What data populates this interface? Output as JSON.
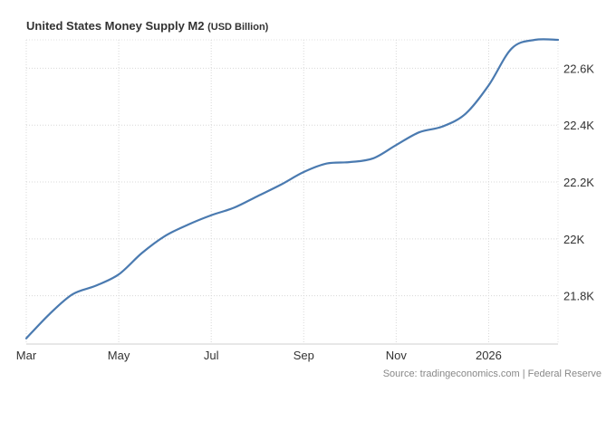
{
  "chart_data": {
    "type": "line",
    "title": "United States Money Supply M2",
    "unit_label": "(USD Billion)",
    "source": "Source: tradingeconomics.com | Federal Reserve",
    "x_tick_labels": [
      "Mar",
      "May",
      "Jul",
      "Sep",
      "Nov",
      "2026"
    ],
    "y_tick_labels": [
      "22.6K",
      "22.4K",
      "22.2K",
      "22K",
      "21.8K"
    ],
    "y_ticks": [
      22600,
      22400,
      22200,
      22000,
      21800
    ],
    "ylim": [
      21630,
      22700
    ],
    "x_range": [
      0,
      11.5
    ],
    "grid": true,
    "series": [
      {
        "name": "Money Supply M2",
        "color": "#4a7ab0",
        "x": [
          0,
          0.5,
          1,
          1.5,
          2,
          2.5,
          3,
          3.5,
          4,
          4.5,
          5,
          5.5,
          6,
          6.5,
          7,
          7.5,
          8,
          8.5,
          9,
          9.5,
          10,
          10.5,
          11,
          11.5
        ],
        "values": [
          21650,
          21735,
          21805,
          21835,
          21875,
          21950,
          22010,
          22050,
          22083,
          22110,
          22150,
          22190,
          22235,
          22265,
          22270,
          22283,
          22330,
          22375,
          22395,
          22440,
          22540,
          22670,
          22700,
          22700
        ]
      }
    ]
  }
}
